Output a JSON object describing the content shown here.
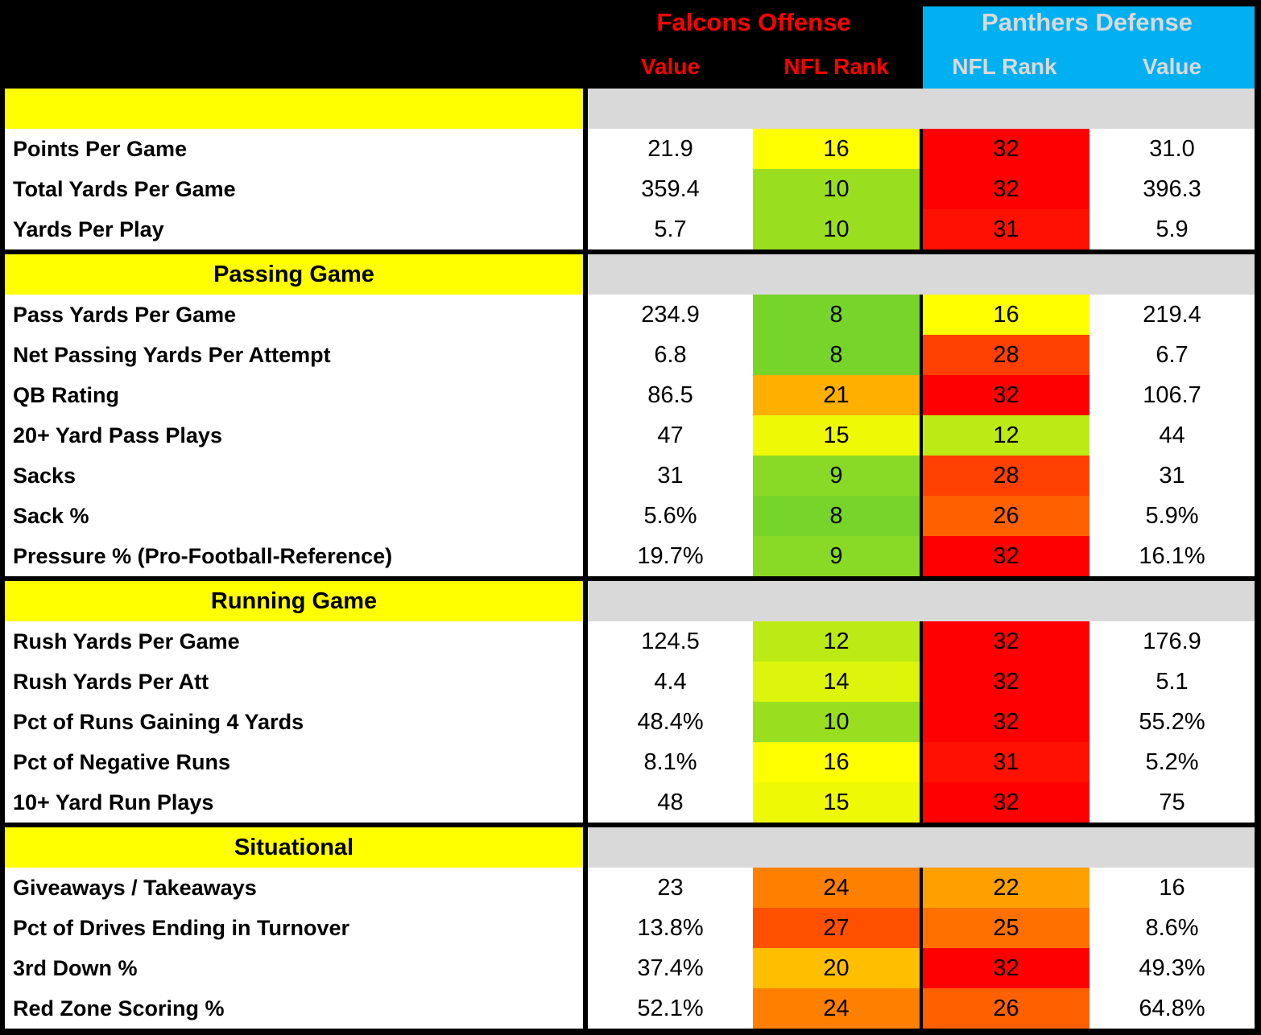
{
  "chart_data": {
    "type": "table",
    "column_groups": [
      {
        "title": "Falcons Offense",
        "columns": [
          "Value",
          "NFL Rank"
        ]
      },
      {
        "title": "Panthers Defense",
        "columns": [
          "NFL Rank",
          "Value"
        ]
      }
    ],
    "sections": [
      {
        "title": "",
        "rows": [
          {
            "label": "Points Per Game",
            "fo_value": "21.9",
            "fo_rank": "16",
            "fo_rank_color": "#FFFF00",
            "pd_rank": "32",
            "pd_rank_color": "#FF0000",
            "pd_value": "31.0"
          },
          {
            "label": "Total Yards Per Game",
            "fo_value": "359.4",
            "fo_rank": "10",
            "fo_rank_color": "#99DF20",
            "pd_rank": "32",
            "pd_rank_color": "#FF0000",
            "pd_value": "396.3"
          },
          {
            "label": "Yards Per Play",
            "fo_value": "5.7",
            "fo_rank": "10",
            "fo_rank_color": "#99DF20",
            "pd_rank": "31",
            "pd_rank_color": "#FF1000",
            "pd_value": "5.9"
          }
        ]
      },
      {
        "title": "Passing Game",
        "rows": [
          {
            "label": "Pass Yards Per Game",
            "fo_value": "234.9",
            "fo_rank": "8",
            "fo_rank_color": "#77D42B",
            "pd_rank": "16",
            "pd_rank_color": "#FFFF00",
            "pd_value": "219.4"
          },
          {
            "label": "Net Passing Yards Per Attempt",
            "fo_value": "6.8",
            "fo_rank": "8",
            "fo_rank_color": "#77D42B",
            "pd_rank": "28",
            "pd_rank_color": "#FF4000",
            "pd_value": "6.7"
          },
          {
            "label": "QB Rating",
            "fo_value": "86.5",
            "fo_rank": "21",
            "fo_rank_color": "#FFAF00",
            "pd_rank": "32",
            "pd_rank_color": "#FF0000",
            "pd_value": "106.7"
          },
          {
            "label": "20+ Yard Pass Plays",
            "fo_value": "47",
            "fo_rank": "15",
            "fo_rank_color": "#EEFA05",
            "pd_rank": "12",
            "pd_rank_color": "#BBEA15",
            "pd_value": "44"
          },
          {
            "label": "Sacks",
            "fo_value": "31",
            "fo_rank": "9",
            "fo_rank_color": "#88DA26",
            "pd_rank": "28",
            "pd_rank_color": "#FF4000",
            "pd_value": "31"
          },
          {
            "label": "Sack %",
            "fo_value": "5.6%",
            "fo_rank": "8",
            "fo_rank_color": "#77D42B",
            "pd_rank": "26",
            "pd_rank_color": "#FF6000",
            "pd_value": "5.9%"
          },
          {
            "label": "Pressure % (Pro-Football-Reference)",
            "fo_value": "19.7%",
            "fo_rank": "9",
            "fo_rank_color": "#88DA26",
            "pd_rank": "32",
            "pd_rank_color": "#FF0000",
            "pd_value": "16.1%"
          }
        ]
      },
      {
        "title": "Running Game",
        "rows": [
          {
            "label": "Rush Yards Per Game",
            "fo_value": "124.5",
            "fo_rank": "12",
            "fo_rank_color": "#BBEA15",
            "pd_rank": "32",
            "pd_rank_color": "#FF0000",
            "pd_value": "176.9"
          },
          {
            "label": "Rush Yards Per Att",
            "fo_value": "4.4",
            "fo_rank": "14",
            "fo_rank_color": "#DDF50B",
            "pd_rank": "32",
            "pd_rank_color": "#FF0000",
            "pd_value": "5.1"
          },
          {
            "label": "Pct of Runs Gaining 4 Yards",
            "fo_value": "48.4%",
            "fo_rank": "10",
            "fo_rank_color": "#99DF20",
            "pd_rank": "32",
            "pd_rank_color": "#FF0000",
            "pd_value": "55.2%"
          },
          {
            "label": "Pct of Negative Runs",
            "fo_value": "8.1%",
            "fo_rank": "16",
            "fo_rank_color": "#FFFF00",
            "pd_rank": "31",
            "pd_rank_color": "#FF1000",
            "pd_value": "5.2%"
          },
          {
            "label": "10+ Yard Run Plays",
            "fo_value": "48",
            "fo_rank": "15",
            "fo_rank_color": "#EEFA05",
            "pd_rank": "32",
            "pd_rank_color": "#FF0000",
            "pd_value": "75"
          }
        ]
      },
      {
        "title": "Situational",
        "rows": [
          {
            "label": "Giveaways / Takeaways",
            "fo_value": "23",
            "fo_rank": "24",
            "fo_rank_color": "#FF7F00",
            "pd_rank": "22",
            "pd_rank_color": "#FF9F00",
            "pd_value": "16"
          },
          {
            "label": "Pct of Drives Ending in Turnover",
            "fo_value": "13.8%",
            "fo_rank": "27",
            "fo_rank_color": "#FF5000",
            "pd_rank": "25",
            "pd_rank_color": "#FF7000",
            "pd_value": "8.6%"
          },
          {
            "label": "3rd Down %",
            "fo_value": "37.4%",
            "fo_rank": "20",
            "fo_rank_color": "#FFBF00",
            "pd_rank": "32",
            "pd_rank_color": "#FF0000",
            "pd_value": "49.3%"
          },
          {
            "label": "Red Zone Scoring %",
            "fo_value": "52.1%",
            "fo_rank": "24",
            "fo_rank_color": "#FF7F00",
            "pd_rank": "26",
            "pd_rank_color": "#FF6000",
            "pd_value": "64.8%"
          }
        ]
      }
    ]
  },
  "colors": {
    "falcons_text": "#FF0000",
    "panthers_text": "#D9D9D9",
    "panthers_bg": "#00B0F0",
    "header_bg": "#000000",
    "section_bg": "#FFFF00",
    "filler_bg": "#D9D9D9",
    "border": "#000000"
  }
}
